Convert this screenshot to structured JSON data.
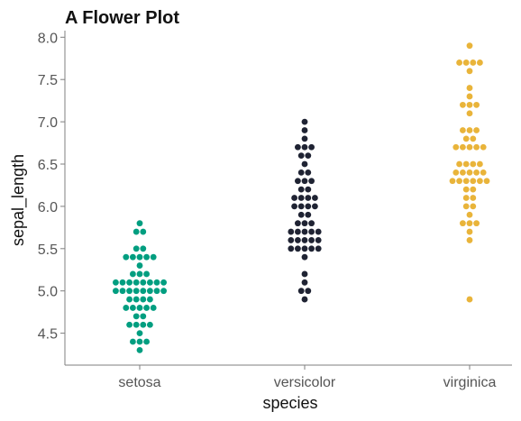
{
  "chart_data": {
    "type": "scatter",
    "subtype": "swarm",
    "title": "A Flower Plot",
    "xlabel": "species",
    "ylabel": "sepal_length",
    "categories": [
      "setosa",
      "versicolor",
      "virginica"
    ],
    "ylim": [
      4.1,
      8.05
    ],
    "yticks": [
      4.5,
      5.0,
      5.5,
      6.0,
      6.5,
      7.0,
      7.5,
      8.0
    ],
    "ytick_labels": [
      "4.5",
      "5.0",
      "5.5",
      "6.0",
      "6.5",
      "7.0",
      "7.5",
      "8.0"
    ],
    "grid": false,
    "legend": "none",
    "series": [
      {
        "category": "setosa",
        "color": "#009e80",
        "values": [
          5.1,
          4.9,
          4.7,
          4.6,
          5.0,
          5.4,
          4.6,
          5.0,
          4.4,
          4.9,
          5.4,
          4.8,
          4.8,
          4.3,
          5.8,
          5.7,
          5.4,
          5.1,
          5.7,
          5.1,
          5.4,
          5.1,
          4.6,
          5.1,
          4.8,
          5.0,
          5.0,
          5.2,
          5.2,
          4.7,
          4.8,
          5.4,
          5.2,
          5.5,
          4.9,
          5.0,
          5.5,
          4.9,
          4.4,
          5.1,
          5.0,
          4.5,
          4.4,
          5.0,
          5.1,
          4.8,
          5.1,
          4.6,
          5.3,
          5.0
        ]
      },
      {
        "category": "versicolor",
        "color": "#1f2333",
        "values": [
          7.0,
          6.4,
          6.9,
          5.5,
          6.5,
          5.7,
          6.3,
          4.9,
          6.6,
          5.2,
          5.0,
          5.9,
          6.0,
          6.1,
          5.6,
          6.7,
          5.6,
          5.8,
          6.2,
          5.6,
          5.9,
          6.1,
          6.3,
          6.1,
          6.4,
          6.6,
          6.8,
          6.7,
          6.0,
          5.7,
          5.5,
          5.5,
          5.8,
          6.0,
          5.4,
          6.0,
          6.7,
          6.3,
          5.6,
          5.5,
          5.5,
          6.1,
          5.8,
          5.0,
          5.6,
          5.7,
          5.7,
          6.2,
          5.1,
          5.7
        ]
      },
      {
        "category": "virginica",
        "color": "#e9b43a",
        "values": [
          6.3,
          5.8,
          7.1,
          6.3,
          6.5,
          7.6,
          4.9,
          7.3,
          6.7,
          7.2,
          6.5,
          6.4,
          6.8,
          5.7,
          5.8,
          6.4,
          6.5,
          7.7,
          7.7,
          6.0,
          6.9,
          5.6,
          7.7,
          6.3,
          6.7,
          7.2,
          6.2,
          6.1,
          6.4,
          7.2,
          7.4,
          7.9,
          6.4,
          6.3,
          6.1,
          7.7,
          6.3,
          6.4,
          6.0,
          6.9,
          6.7,
          6.9,
          5.8,
          6.8,
          6.7,
          6.7,
          6.3,
          6.5,
          6.2,
          5.9
        ]
      }
    ]
  }
}
